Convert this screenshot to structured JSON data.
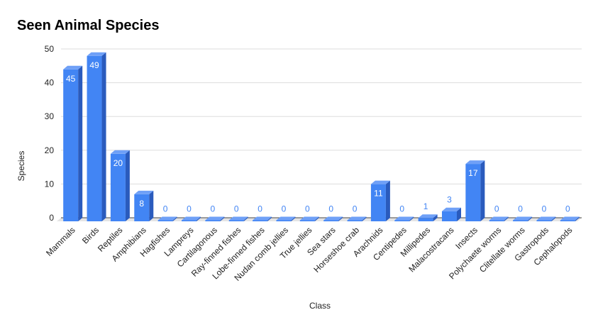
{
  "chart_data": {
    "type": "bar",
    "title": "Seen Animal Species",
    "xlabel": "Class",
    "ylabel": "Species",
    "ylim": [
      0,
      50
    ],
    "yticks": [
      0,
      10,
      20,
      30,
      40,
      50
    ],
    "grid": true,
    "legend": "none",
    "style": "3d-bars",
    "colors": {
      "bar_front": "#4285f4",
      "bar_side": "#2a5bbd",
      "bar_top": "#6fa0f7",
      "gridline": "#dddddd",
      "floor": "#e4e4e4",
      "label_inside": "#ffffff",
      "label_outside": "#4285f4"
    },
    "categories": [
      "Mammals",
      "Birds",
      "Reptiles",
      "Amphibians",
      "Hagfishes",
      "Lampreys",
      "Cartilagonous",
      "Ray-finned fishes",
      "Lobe-finned fishes",
      "Nudan comb jellies",
      "True jellies",
      "Sea stars",
      "Horseshoe crab",
      "Arachnids",
      "Centipedes",
      "Millipedes",
      "Malacostracans",
      "Insects",
      "Polychaete worms",
      "Clitellate worms",
      "Gastropods",
      "Cephalopods"
    ],
    "values": [
      45,
      49,
      20,
      8,
      0,
      0,
      0,
      0,
      0,
      0,
      0,
      0,
      0,
      11,
      0,
      1,
      3,
      17,
      0,
      0,
      0,
      0
    ]
  }
}
